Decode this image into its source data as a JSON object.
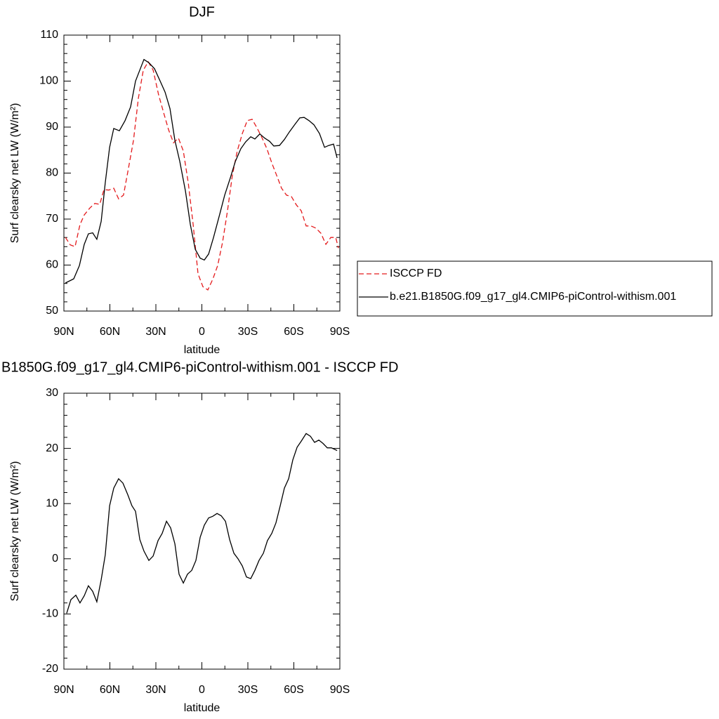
{
  "chart_data": [
    {
      "type": "line",
      "title": "DJF",
      "xlabel": "latitude",
      "ylabel": "Surf clearsky net LW (W/m²)",
      "xlim": [
        90,
        -90
      ],
      "xticks": [
        {
          "value": 90,
          "label": "90N"
        },
        {
          "value": 60,
          "label": "60N"
        },
        {
          "value": 30,
          "label": "30N"
        },
        0,
        {
          "value": -30,
          "label": "30S"
        },
        {
          "value": -60,
          "label": "60S"
        },
        {
          "value": -90,
          "label": "90S"
        }
      ],
      "ylim": [
        50,
        110
      ],
      "yticks": [
        50,
        60,
        70,
        80,
        90,
        100,
        110
      ],
      "legend": "right",
      "series": [
        {
          "name": "ISCCP FD",
          "color": "#e41a1c",
          "linestyle": "dashed",
          "x": [
            89,
            85.9,
            82.7,
            79.5,
            76.7,
            73.1,
            69.8,
            66.6,
            63.9,
            60.7,
            57.5,
            54.3,
            51.1,
            47.9,
            44.6,
            41.4,
            38.2,
            35,
            31.8,
            28.2,
            25,
            21.7,
            18.5,
            15.3,
            12.1,
            8.9,
            5.7,
            2.5,
            -0.7,
            -3.9,
            -7.1,
            -10.3,
            -13.5,
            -16.7,
            -19.9,
            -23.1,
            -26.4,
            -29.6,
            -32.8,
            -36,
            -39.2,
            -42.4,
            -45.6,
            -48.8,
            -52,
            -55.2,
            -58.4,
            -61.6,
            -64.8,
            -68,
            -71.2,
            -74.5,
            -77.7,
            -80.9,
            -84.1,
            -87.3,
            -89.1
          ],
          "values": [
            66,
            64.4,
            64,
            68.8,
            70.9,
            72.4,
            73.4,
            73.2,
            76.4,
            76.3,
            76.7,
            74.4,
            75.2,
            81,
            87.1,
            96.3,
            102.4,
            104.2,
            102.4,
            97,
            93.2,
            89.4,
            86.6,
            87.6,
            84.8,
            77.9,
            68.8,
            58.1,
            55.3,
            54.6,
            56.9,
            59.9,
            65,
            71.8,
            79.5,
            84.8,
            88.6,
            91.4,
            91.7,
            89.8,
            87.7,
            85.3,
            82.2,
            79.5,
            76.7,
            75.2,
            74.9,
            73.1,
            71.8,
            68.5,
            68.5,
            68,
            66.9,
            64.5,
            66,
            66,
            63.7
          ]
        },
        {
          "name": "b.e21.B1850G.f09_g17_gl4.CMIP6-piControl-withism.001",
          "color": "#000000",
          "linestyle": "solid",
          "x": [
            89,
            83.6,
            79.9,
            76.7,
            74,
            71.2,
            68.5,
            65.7,
            63,
            60.2,
            57.5,
            53.8,
            50.1,
            46.5,
            43.3,
            40.5,
            37.8,
            34.6,
            30.9,
            27.2,
            24,
            20.8,
            17.6,
            14.4,
            10.7,
            7.5,
            4.3,
            1.1,
            -1.6,
            -4.4,
            -7.6,
            -11.7,
            -14.9,
            -18.6,
            -21.8,
            -25.4,
            -28.6,
            -31.9,
            -34.6,
            -37.8,
            -41,
            -44.2,
            -46.9,
            -50.6,
            -53.8,
            -57,
            -60.7,
            -63.9,
            -66.7,
            -69.9,
            -73.1,
            -76.7,
            -80,
            -82.7,
            -85.9,
            -88.2
          ],
          "values": [
            56.1,
            57,
            59.9,
            64.5,
            66.8,
            67,
            65.6,
            69.5,
            77.9,
            85.6,
            89.7,
            89.2,
            91.4,
            94.4,
            100,
            102.4,
            104.7,
            104,
            102.7,
            100,
            97.6,
            94,
            87.1,
            82.5,
            76.1,
            68.8,
            63.4,
            61.5,
            61.1,
            62.4,
            66,
            71.1,
            75.2,
            79,
            82.5,
            85.3,
            86.8,
            87.9,
            87.4,
            88.5,
            87.6,
            86.9,
            85.9,
            86,
            87.3,
            88.9,
            90.6,
            92,
            92.1,
            91.4,
            90.5,
            88.6,
            85.6,
            86,
            86.3,
            83.3
          ]
        }
      ]
    },
    {
      "type": "line",
      "title": "B1850G.f09_g17_gl4.CMIP6-piControl-withism.001 - ISCCP FD",
      "xlabel": "latitude",
      "ylabel": "Surf clearsky net LW (W/m²)",
      "xlim": [
        90,
        -90
      ],
      "xticks": [
        {
          "value": 90,
          "label": "90N"
        },
        {
          "value": 60,
          "label": "60N"
        },
        {
          "value": 30,
          "label": "30N"
        },
        0,
        {
          "value": -30,
          "label": "30S"
        },
        {
          "value": -60,
          "label": "60S"
        },
        {
          "value": -90,
          "label": "90S"
        }
      ],
      "ylim": [
        -20,
        30
      ],
      "yticks": [
        -20,
        -10,
        0,
        10,
        20,
        30
      ],
      "series": [
        {
          "color": "#000000",
          "linestyle": "solid",
          "x": [
            88.2,
            85.4,
            82.2,
            79.5,
            76.7,
            74,
            71.2,
            68.5,
            65.7,
            63,
            60.2,
            57.5,
            54.3,
            51.5,
            48.3,
            45.6,
            43.3,
            40.5,
            37.8,
            34.6,
            31.8,
            28.6,
            25.9,
            23.1,
            20.4,
            17.6,
            14.9,
            12.1,
            9.4,
            6.6,
            3.9,
            1.1,
            -1.6,
            -4.4,
            -7.1,
            -9.9,
            -12.6,
            -15.4,
            -18.1,
            -20.9,
            -23.6,
            -26.4,
            -29.1,
            -31.9,
            -34.6,
            -37.3,
            -40.1,
            -42.8,
            -45.6,
            -48.3,
            -51.1,
            -53.8,
            -56.6,
            -59.3,
            -62.1,
            -64.8,
            -68,
            -70.8,
            -73.5,
            -76.3,
            -79,
            -81.8,
            -84.5,
            -88.2
          ],
          "values": [
            -9.9,
            -7.4,
            -6.6,
            -8,
            -6.7,
            -4.9,
            -5.9,
            -7.8,
            -3.8,
            0.7,
            9.6,
            12.8,
            14.5,
            13.7,
            11.6,
            9.6,
            8.6,
            3.5,
            1.4,
            -0.3,
            0.5,
            3.3,
            4.6,
            6.8,
            5.6,
            2.7,
            -2.8,
            -4.4,
            -2.8,
            -2.1,
            -0.3,
            3.9,
            6.1,
            7.4,
            7.7,
            8.2,
            7.8,
            6.8,
            3.5,
            1,
            0,
            -1.3,
            -3.3,
            -3.6,
            -2.1,
            -0.3,
            1,
            3.3,
            4.6,
            6.5,
            9.6,
            12.8,
            14.5,
            17.9,
            20.2,
            21.3,
            22.7,
            22.2,
            21.1,
            21.5,
            20.9,
            20.1,
            20.1,
            19.6
          ]
        }
      ]
    }
  ]
}
